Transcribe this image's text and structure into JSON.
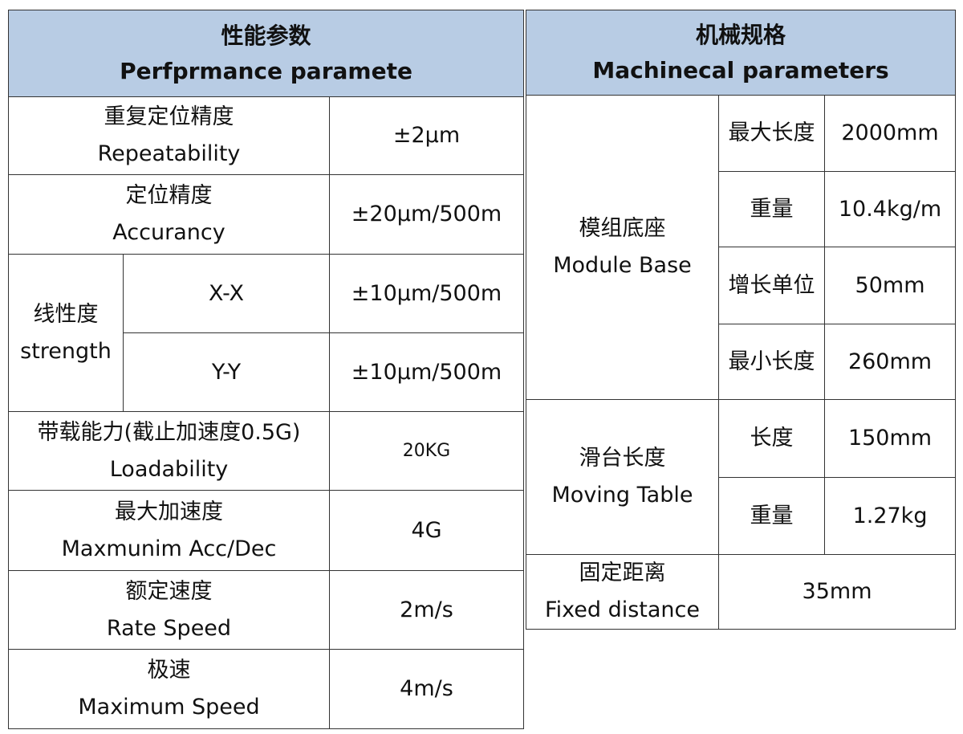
{
  "performance": {
    "title_cn": "性能参数",
    "title_en": "Perfprmance paramete",
    "rows": [
      {
        "cn": "重复定位精度",
        "en": "Repeatability",
        "value": "±2μm"
      },
      {
        "cn": "定位精度",
        "en": "Accurancy",
        "value": "±20μm/500m"
      },
      {
        "cn": "带载能力(截止加速度0.5G)",
        "en": "Loadability",
        "value": "20KG"
      },
      {
        "cn": "最大加速度",
        "en": "Maxmunim Acc/Dec",
        "value": "4G"
      },
      {
        "cn": "额定速度",
        "en": "Rate Speed",
        "value": "2m/s"
      },
      {
        "cn": "极速",
        "en": "Maximum Speed",
        "value": "4m/s"
      }
    ],
    "strength": {
      "cn": "线性度",
      "en": "strength",
      "sub": [
        {
          "axis": "X-X",
          "value": "±10μm/500m"
        },
        {
          "axis": "Y-Y",
          "value": "±10μm/500m"
        }
      ]
    }
  },
  "mechanical": {
    "title_cn": "机械规格",
    "title_en": "Machinecal parameters",
    "module_base": {
      "cn": "模组底座",
      "en": "Module Base",
      "sub": [
        {
          "k": "最大长度",
          "v": "2000mm"
        },
        {
          "k": "重量",
          "v": "10.4kg/m"
        },
        {
          "k": "增长单位",
          "v": "50mm"
        },
        {
          "k": "最小长度",
          "v": "260mm"
        }
      ]
    },
    "moving_table": {
      "cn": "滑台长度",
      "en": "Moving Table",
      "sub": [
        {
          "k": "长度",
          "v": "150mm"
        },
        {
          "k": "重量",
          "v": "1.27kg"
        }
      ]
    },
    "fixed": {
      "cn": "固定距离",
      "en": "Fixed distance",
      "value": "35mm"
    }
  },
  "colors": {
    "header_bg": "#b8cce4",
    "border": "#333333"
  }
}
